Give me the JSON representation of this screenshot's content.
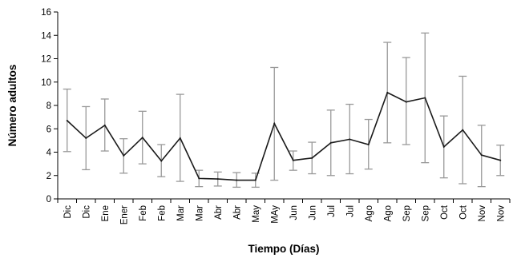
{
  "chart_data": {
    "type": "line",
    "title": "",
    "xlabel": "Tiempo (Días)",
    "ylabel": "Número adultos",
    "ylim": [
      0,
      16
    ],
    "yticks": [
      0,
      2,
      4,
      6,
      8,
      10,
      12,
      14,
      16
    ],
    "grid": false,
    "categories": [
      "Dic",
      "Dic",
      "Ene",
      "Ener",
      "Feb",
      "Feb",
      "Mar",
      "Mar",
      "Abr",
      "Abr",
      "May",
      "MAy",
      "Jun",
      "Jun",
      "Jul",
      "Jul",
      "Ago",
      "Ago",
      "Sep",
      "Sep",
      "Oct",
      "Oct",
      "Nov",
      "Nov"
    ],
    "series": [
      {
        "values": [
          6.7,
          5.2,
          6.3,
          3.7,
          5.25,
          3.25,
          5.2,
          1.75,
          1.7,
          1.6,
          1.6,
          6.45,
          3.3,
          3.5,
          4.8,
          5.1,
          4.65,
          9.1,
          8.3,
          8.65,
          4.45,
          5.9,
          3.75,
          3.3
        ],
        "error_low": [
          4.05,
          2.5,
          4.1,
          2.2,
          3.0,
          1.9,
          1.5,
          1.05,
          1.1,
          1.0,
          1.0,
          1.6,
          2.45,
          2.15,
          2.0,
          2.15,
          2.55,
          4.8,
          4.65,
          3.1,
          1.8,
          1.3,
          1.05,
          2.0
        ],
        "error_high": [
          9.4,
          7.9,
          8.55,
          5.15,
          7.5,
          4.65,
          8.95,
          2.45,
          2.3,
          2.25,
          2.2,
          11.25,
          4.1,
          4.85,
          7.6,
          8.1,
          6.8,
          13.4,
          12.1,
          14.2,
          7.1,
          10.5,
          6.3,
          4.6
        ],
        "color": "#1a1a1a",
        "error_color": "#999999"
      }
    ]
  }
}
